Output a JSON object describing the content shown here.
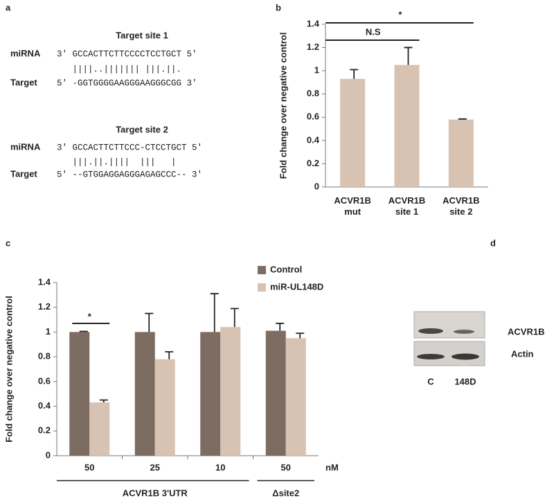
{
  "panel_labels": [
    "a",
    "b",
    "c",
    "d"
  ],
  "alignment": [
    {
      "title": "Target site 1",
      "mirna_label": "miRNA",
      "mirna_seq": "3' GCCACTTCTTCCCCTCCTGCT 5'",
      "pairing": "   ||||..||||||| |||.||.",
      "target_label": "Target",
      "target_seq": "5' -GGTGGGGAAGGGAAGGGCGG 3'"
    },
    {
      "title": "Target site 2",
      "mirna_label": "miRNA",
      "mirna_seq": "3' GCCACTTCTTCCC-CTCCTGCT 5'",
      "pairing": "   |||.||.||||  |||   |",
      "target_label": "Target",
      "target_seq": "5' --GTGGAGGAGGGAGAGCCC-- 3'"
    }
  ],
  "blot": {
    "bands": [
      "ACVR1B",
      "Actin"
    ],
    "lanes": [
      "C",
      "148D"
    ]
  },
  "chart_data": [
    {
      "type": "bar",
      "ylabel": "Fold change over negative control",
      "categories": [
        "ACVR1B mut",
        "ACVR1B site 1",
        "ACVR1B site 2"
      ],
      "values": [
        0.93,
        1.05,
        0.58
      ],
      "errors": [
        0.08,
        0.15,
        0.005
      ],
      "color": "#d8c2b2",
      "ylim": [
        0,
        1.4
      ],
      "yticks": [
        0,
        0.2,
        0.4,
        0.6,
        0.8,
        1,
        1.2,
        1.4
      ],
      "annotations": [
        "*",
        "N.S"
      ]
    },
    {
      "type": "grouped_bar",
      "ylabel": "Fold change over negative control",
      "categories": [
        "50",
        "25",
        "10",
        "50"
      ],
      "x_unit": "nM",
      "groups": [
        "ACVR1B 3'UTR",
        "Δsite2"
      ],
      "series": [
        {
          "name": "Control",
          "color": "#7d6c62",
          "values": [
            1.0,
            1.0,
            1.0,
            1.01
          ],
          "errors": [
            0.005,
            0.15,
            0.31,
            0.06
          ]
        },
        {
          "name": "miR-UL148D",
          "color": "#d8c2b2",
          "values": [
            0.43,
            0.78,
            1.04,
            0.95
          ],
          "errors": [
            0.02,
            0.06,
            0.15,
            0.04
          ]
        }
      ],
      "ylim": [
        0,
        1.4
      ],
      "yticks": [
        0,
        0.2,
        0.4,
        0.6,
        0.8,
        1,
        1.2,
        1.4
      ],
      "legend": "top-right",
      "annotations": [
        "*"
      ]
    }
  ]
}
